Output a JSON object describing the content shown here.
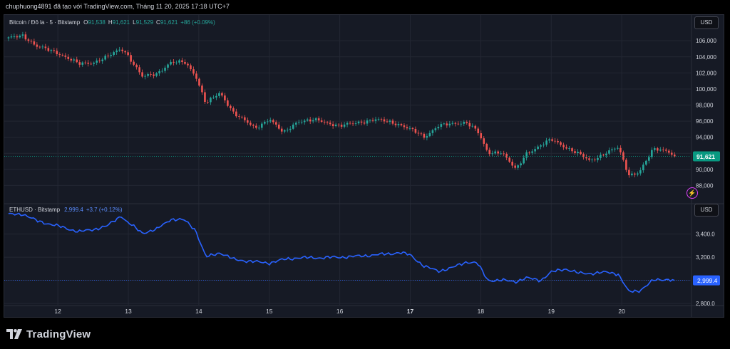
{
  "header": {
    "attribution": "chuphuong4891 đã tạo với TradingView.com, Tháng 11 20, 2025 17:18 UTC+7"
  },
  "currency_label": "USD",
  "brand": {
    "name": "TradingView"
  },
  "colors": {
    "background": "#161a25",
    "grid": "#232733",
    "candle_up": "#26a69a",
    "candle_down": "#ef5350",
    "eth_line": "#2962ff",
    "price_tag_btc": "#089981",
    "price_tag_eth": "#2962ff"
  },
  "chart_data": [
    {
      "type": "candlestick",
      "legend": {
        "symbol": "Bitcoin / Đô la · 5 · Bitstamp",
        "o_label": "O",
        "o_value": "91,538",
        "h_label": "H",
        "h_value": "91,621",
        "l_label": "L",
        "l_value": "91,529",
        "c_label": "C",
        "c_value": "91,621",
        "change": "+86 (+0.09%)"
      },
      "y_ticks": [
        "106,000",
        "104,000",
        "102,000",
        "100,000",
        "98,000",
        "96,000",
        "94,000",
        "92,000",
        "90,000",
        "88,000"
      ],
      "y_tick_values": [
        106000,
        104000,
        102000,
        100000,
        98000,
        96000,
        94000,
        92000,
        90000,
        88000
      ],
      "ylim": [
        86000,
        108500
      ],
      "last_price": 91621,
      "last_price_label": "91,621",
      "x_days": [
        11.3,
        11.5,
        11.7,
        12.0,
        12.3,
        12.5,
        12.7,
        12.9,
        12.97,
        13.2,
        13.4,
        13.6,
        13.8,
        13.95,
        14.1,
        14.3,
        14.5,
        14.8,
        15.0,
        15.2,
        15.4,
        15.7,
        16.0,
        16.3,
        16.5,
        16.7,
        16.85,
        17.0,
        17.2,
        17.4,
        17.6,
        17.8,
        17.95,
        18.1,
        18.3,
        18.5,
        18.65,
        18.85,
        19.0,
        19.2,
        19.4,
        19.55,
        19.8,
        19.95,
        20.1,
        20.25,
        20.45,
        20.65,
        20.75
      ],
      "values": [
        106300,
        106700,
        105300,
        104500,
        103100,
        103300,
        104000,
        105000,
        104500,
        101500,
        101900,
        103300,
        103300,
        101800,
        98200,
        99500,
        97000,
        95100,
        96300,
        94500,
        96000,
        96100,
        95400,
        95900,
        96200,
        95900,
        95600,
        95000,
        94000,
        95500,
        95600,
        95900,
        94800,
        92000,
        92200,
        89900,
        92000,
        93000,
        93700,
        92800,
        91900,
        91000,
        92200,
        92700,
        89300,
        89700,
        92500,
        92400,
        91621
      ]
    },
    {
      "type": "line",
      "legend": {
        "symbol": "ETHUSD · Bitstamp",
        "value": "2,999.4",
        "change": "+3.7 (+0.12%)"
      },
      "y_ticks": [
        "3,400.0",
        "3,200.0",
        "3,000.0",
        "2,800.0"
      ],
      "y_tick_values": [
        3400,
        3200,
        3000,
        2800
      ],
      "ylim": [
        2800,
        3620
      ],
      "last_price": 2999.4,
      "last_price_label": "2,999.4",
      "x_days": [
        11.3,
        11.5,
        11.7,
        12.0,
        12.3,
        12.5,
        12.7,
        12.9,
        12.97,
        13.2,
        13.4,
        13.6,
        13.8,
        13.95,
        14.1,
        14.3,
        14.5,
        14.8,
        15.0,
        15.2,
        15.4,
        15.7,
        16.0,
        16.3,
        16.5,
        16.7,
        16.85,
        17.0,
        17.2,
        17.4,
        17.6,
        17.8,
        17.95,
        18.1,
        18.3,
        18.5,
        18.65,
        18.85,
        19.0,
        19.2,
        19.4,
        19.55,
        19.8,
        19.95,
        20.1,
        20.25,
        20.45,
        20.65,
        20.75
      ],
      "values": [
        3570,
        3575,
        3515,
        3470,
        3420,
        3440,
        3470,
        3560,
        3510,
        3410,
        3440,
        3530,
        3520,
        3440,
        3200,
        3240,
        3180,
        3160,
        3150,
        3180,
        3195,
        3195,
        3200,
        3210,
        3220,
        3230,
        3240,
        3220,
        3120,
        3080,
        3110,
        3160,
        3150,
        3000,
        3000,
        2990,
        3020,
        3000,
        3070,
        3100,
        3060,
        3060,
        3070,
        3055,
        2900,
        2910,
        3000,
        3010,
        2999.4
      ]
    }
  ],
  "x_axis": {
    "ticks": [
      "12",
      "13",
      "14",
      "15",
      "16",
      "17",
      "18",
      "19",
      "20"
    ],
    "tick_values": [
      12,
      13,
      14,
      15,
      16,
      17,
      18,
      19,
      20
    ],
    "bold": [
      "17"
    ],
    "range": [
      11.24,
      20.98
    ]
  }
}
